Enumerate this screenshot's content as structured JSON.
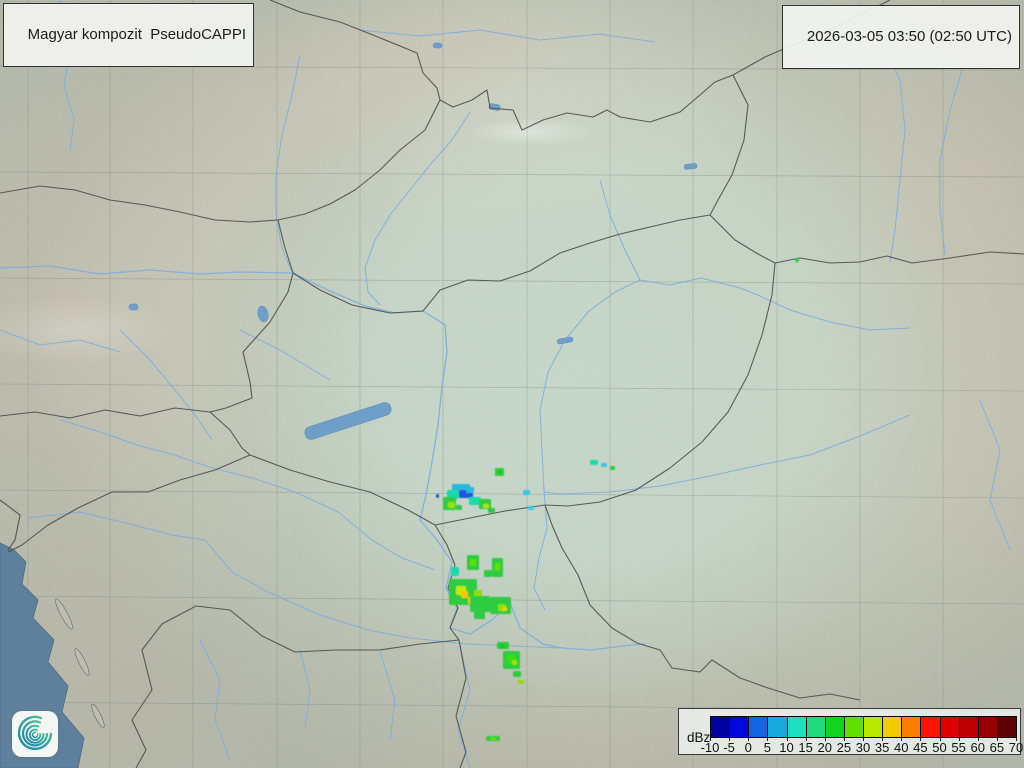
{
  "header": {
    "product_label": "Magyar kompozit  PseudoCAPPI",
    "timestamp": "2026-03-05 03:50 (02:50 UTC)"
  },
  "legend": {
    "unit": "dBz",
    "tick_labels": [
      "-10",
      "-5",
      "0",
      "5",
      "10",
      "15",
      "20",
      "25",
      "30",
      "35",
      "40",
      "45",
      "50",
      "55",
      "60",
      "65",
      "70"
    ],
    "colors": [
      "#0000a0",
      "#0008e0",
      "#1466e0",
      "#14aadc",
      "#1edfbe",
      "#23d97e",
      "#12d322",
      "#5fdf00",
      "#b8e800",
      "#f2ca00",
      "#f97e00",
      "#fb1500",
      "#df0000",
      "#bb0000",
      "#970000",
      "#5f0000"
    ]
  },
  "logo": {
    "name": "met-service-spiral-logo"
  },
  "map_colors": {
    "land_base": "#b9c4b4",
    "coverage_tint": "#cbddcf",
    "sea": "#5e809c",
    "lake": "#6f9fc8",
    "river": "#7dade0",
    "border": "#4a4a46",
    "graticule": "#7e8884"
  },
  "echoes": [
    [
      452,
      484,
      18,
      7,
      "#2bb7de"
    ],
    [
      447,
      490,
      12,
      9,
      "#1fd9ac"
    ],
    [
      459,
      490,
      14,
      8,
      "#2257d8"
    ],
    [
      466,
      487,
      8,
      6,
      "#2bb7de"
    ],
    [
      443,
      497,
      13,
      13,
      "#2ecc40"
    ],
    [
      448,
      502,
      7,
      6,
      "#9ce000"
    ],
    [
      456,
      505,
      6,
      5,
      "#2ecc40"
    ],
    [
      469,
      497,
      12,
      8,
      "#1fd9ac"
    ],
    [
      479,
      499,
      12,
      10,
      "#2ecc40"
    ],
    [
      483,
      504,
      6,
      4,
      "#b4e400"
    ],
    [
      488,
      508,
      7,
      5,
      "#2ecc40"
    ],
    [
      436,
      494,
      3,
      4,
      "#2257d8"
    ],
    [
      495,
      468,
      9,
      8,
      "#2ecc40"
    ],
    [
      498,
      470,
      4,
      4,
      "#0bd20b"
    ],
    [
      523,
      490,
      7,
      5,
      "#35c8e8"
    ],
    [
      528,
      506,
      6,
      4,
      "#35c8e8"
    ],
    [
      590,
      460,
      8,
      5,
      "#1fd9ac"
    ],
    [
      601,
      463,
      6,
      4,
      "#35c8e8"
    ],
    [
      610,
      466,
      5,
      4,
      "#2ecc40"
    ],
    [
      795,
      258,
      4,
      4,
      "#2ecc40"
    ],
    [
      467,
      555,
      12,
      15,
      "#2ecc40"
    ],
    [
      470,
      559,
      6,
      7,
      "#62e000"
    ],
    [
      492,
      558,
      11,
      19,
      "#2ecc40"
    ],
    [
      495,
      563,
      5,
      8,
      "#62e000"
    ],
    [
      451,
      567,
      8,
      9,
      "#1fd9ac"
    ],
    [
      484,
      570,
      8,
      7,
      "#2ecc40"
    ],
    [
      449,
      579,
      28,
      26,
      "#2ecc40"
    ],
    [
      456,
      586,
      10,
      9,
      "#c8e800"
    ],
    [
      461,
      591,
      7,
      7,
      "#f0c800"
    ],
    [
      468,
      597,
      8,
      7,
      "#f0c800"
    ],
    [
      474,
      590,
      8,
      8,
      "#8ee000"
    ],
    [
      470,
      596,
      20,
      16,
      "#2ecc40"
    ],
    [
      490,
      597,
      21,
      17,
      "#2ecc40"
    ],
    [
      498,
      604,
      8,
      7,
      "#8ee000"
    ],
    [
      502,
      607,
      5,
      4,
      "#e8d400"
    ],
    [
      474,
      611,
      11,
      8,
      "#2ecc40"
    ],
    [
      497,
      642,
      12,
      7,
      "#2ecc40"
    ],
    [
      500,
      644,
      5,
      4,
      "#0bd20b"
    ],
    [
      503,
      651,
      17,
      18,
      "#2ecc40"
    ],
    [
      507,
      655,
      8,
      8,
      "#3ddd0a"
    ],
    [
      512,
      660,
      5,
      5,
      "#9ce000"
    ],
    [
      513,
      671,
      8,
      6,
      "#2ecc40"
    ],
    [
      518,
      680,
      6,
      4,
      "#8ee000"
    ],
    [
      486,
      736,
      14,
      5,
      "#2ecc40"
    ],
    [
      490,
      737,
      6,
      3,
      "#62e000"
    ]
  ]
}
